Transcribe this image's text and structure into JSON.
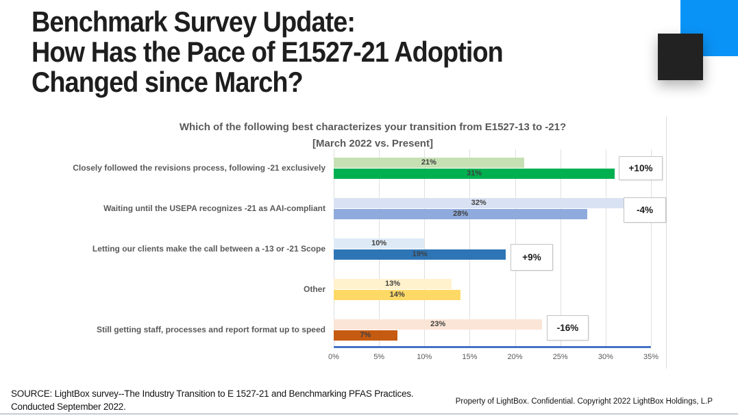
{
  "slide": {
    "title": "Benchmark Survey Update:\nHow Has the Pace of E1527-21 Adoption\nChanged since March?"
  },
  "chart_data": {
    "type": "bar",
    "orientation": "horizontal",
    "title": "Which of the following best characterizes your transition from E1527-13 to -21?\n[March 2022 vs. Present]",
    "categories": [
      "Closely followed the revisions process, following -21 exclusively",
      "Waiting until the USEPA recognizes -21 as AAI-compliant",
      "Letting our clients make the call between a -13 or -21 Scope",
      "Other",
      "Still getting staff, processes and report format up to speed"
    ],
    "series": [
      {
        "name": "March 2022",
        "values": [
          21,
          32,
          10,
          13,
          23
        ]
      },
      {
        "name": "Present",
        "values": [
          31,
          28,
          19,
          14,
          7
        ]
      }
    ],
    "value_labels": {
      "march": [
        "21%",
        "32%",
        "10%",
        "13%",
        "23%"
      ],
      "present": [
        "31%",
        "28%",
        "19%",
        "14%",
        "7%"
      ]
    },
    "changes": [
      "+10%",
      "-4%",
      "+9%",
      null,
      "-16%"
    ],
    "xlim": [
      0,
      35
    ],
    "x_tick_labels": [
      "0%",
      "5%",
      "10%",
      "15%",
      "20%",
      "25%",
      "30%",
      "35%"
    ],
    "grid": true,
    "legend": "none",
    "colors": {
      "march": [
        "#C6E0B4",
        "#D9E2F3",
        "#DEEBF7",
        "#FFF2CC",
        "#FBE5D6"
      ],
      "present": [
        "#00B050",
        "#8FAADC",
        "#2E75B6",
        "#FFD966",
        "#C55A11"
      ],
      "axis_line": "#4472C4",
      "gridline": "#DFDFDF"
    }
  },
  "decor": {
    "blue_square_color": "#0A93F7",
    "black_square_color": "#222222"
  },
  "footer": {
    "source": "SOURCE: LightBox survey--The Industry Transition to E 1527-21 and Benchmarking PFAS Practices.\nConducted September 2022.",
    "copyright": "Property of LightBox. Confidential. Copyright 2022 LightBox Holdings, L.P"
  }
}
